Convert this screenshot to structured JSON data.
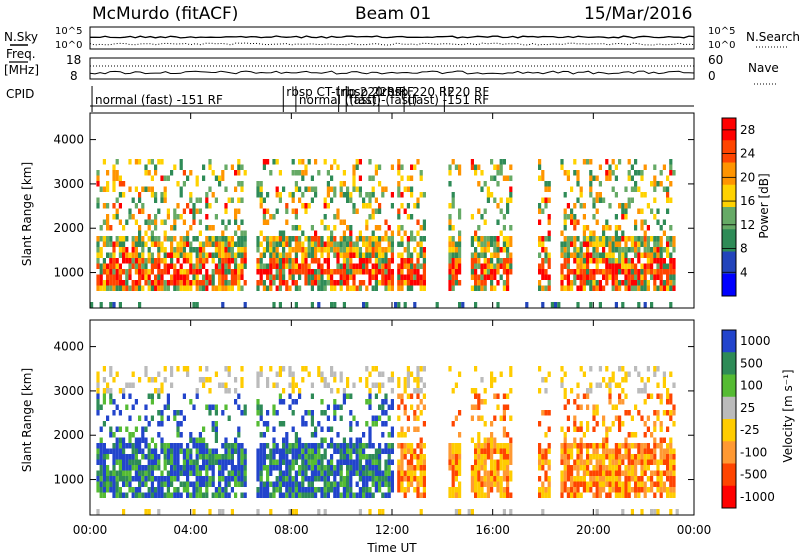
{
  "header": {
    "station": "McMurdo (fitACF)",
    "beam": "Beam 01",
    "date": "15/Mar/2016"
  },
  "panels": {
    "nsky_label": "N.Sky",
    "nsearch_label": "N.Search",
    "noise_ticks_left": [
      "10^5",
      "10^0"
    ],
    "noise_ticks_right": [
      "10^5",
      "10^0"
    ],
    "freq_label_1": "Freq.",
    "freq_label_2": "[MHz]",
    "freq_ticks": [
      "18",
      "8"
    ],
    "nave_label": "Nave",
    "nave_ticks": [
      "60",
      "0"
    ],
    "cpid_label": "CPID",
    "cpid_entries": [
      {
        "text": "normal (fast) -151 RF",
        "hour": 0.2,
        "row": 1
      },
      {
        "text": "rbsp CT-trip 220 RF",
        "hour": 7.8,
        "row": 0
      },
      {
        "text": "normal (fast)",
        "hour": 8.3,
        "row": 1
      },
      {
        "text": "rbsp 220 RF",
        "hour": 10.0,
        "row": 0
      },
      {
        "text": "(fast)-(fast)",
        "hour": 10.3,
        "row": 1
      },
      {
        "text": "rbsp 220 RF",
        "hour": 11.6,
        "row": 0
      },
      {
        "text": "(fast) -151 RF",
        "hour": 12.6,
        "row": 1
      },
      {
        "text": "220 RF",
        "hour": 14.2,
        "row": 0
      }
    ]
  },
  "chart_data": [
    {
      "type": "heatmap",
      "name": "power",
      "ylabel": "Slant Range [km]",
      "xlabel": "",
      "x_ticks": [
        "00:00",
        "04:00",
        "08:00",
        "12:00",
        "16:00",
        "20:00",
        "00:00"
      ],
      "xlim_hours": [
        0,
        24
      ],
      "ylim": [
        200,
        4600
      ],
      "y_ticks": [
        1000,
        2000,
        3000,
        4000
      ],
      "colorbar": {
        "label": "Power [dB]",
        "ticks": [
          4,
          8,
          12,
          16,
          20,
          24,
          28
        ],
        "range": [
          0,
          30
        ],
        "colors": [
          "#0000ff",
          "#2244bb",
          "#2e8b57",
          "#66aa66",
          "#ffd200",
          "#ff9400",
          "#ff4500",
          "#ff0000"
        ]
      }
    },
    {
      "type": "heatmap",
      "name": "velocity",
      "ylabel": "Slant Range [km]",
      "xlabel": "Time UT",
      "x_ticks": [
        "00:00",
        "04:00",
        "08:00",
        "12:00",
        "16:00",
        "20:00",
        "00:00"
      ],
      "xlim_hours": [
        0,
        24
      ],
      "ylim": [
        200,
        4600
      ],
      "y_ticks": [
        1000,
        2000,
        3000,
        4000
      ],
      "colorbar": {
        "label": "Velocity [m s⁻¹]",
        "ticks": [
          "1000",
          "500",
          "100",
          "25",
          "-25",
          "-100",
          "-500",
          "-1000"
        ],
        "colors": [
          "#2244cc",
          "#2e8b57",
          "#55bb33",
          "#bbbbbb",
          "#ffcc00",
          "#ff9933",
          "#ff4400",
          "#ff0000"
        ]
      }
    }
  ]
}
